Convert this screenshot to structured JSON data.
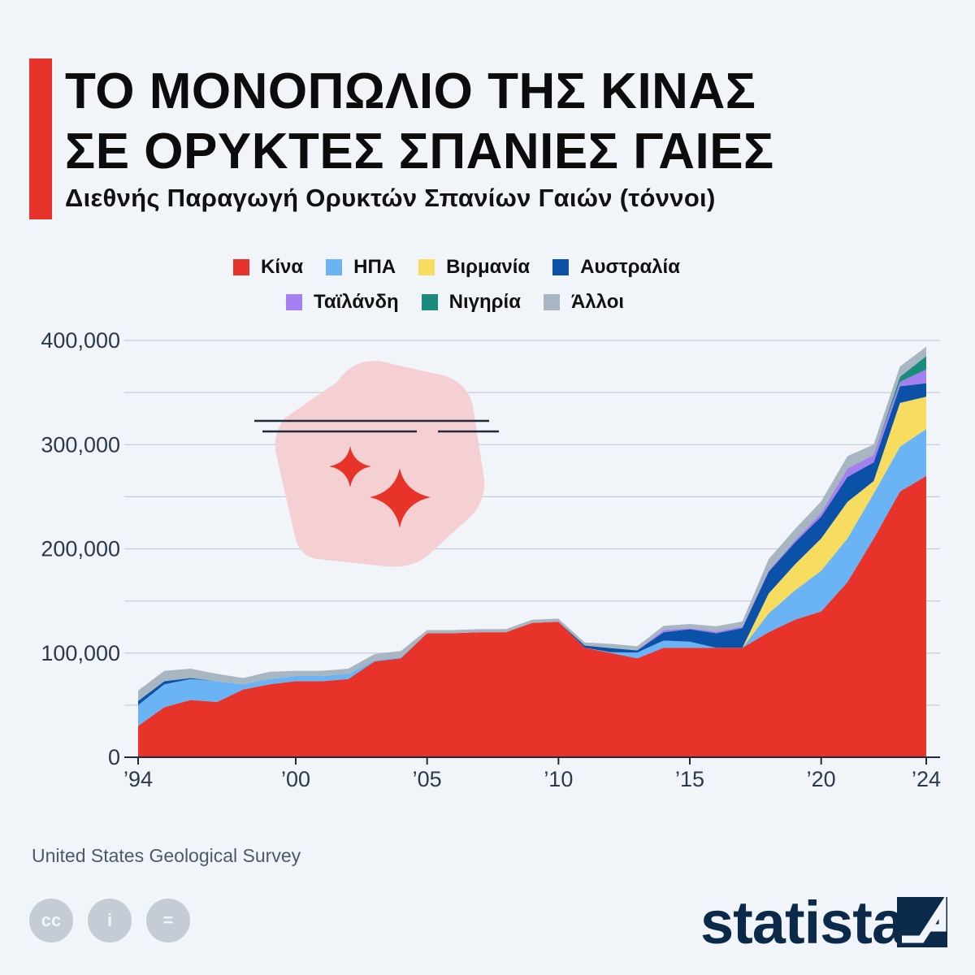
{
  "header": {
    "title_line1": "ΤΟ ΜΟΝΟΠΩΛΙΟ ΤΗΣ ΚΙΝΑΣ",
    "title_line2": "ΣΕ ΟΡΥΚΤΕΣ ΣΠΑΝΙΕΣ ΓΑΙΕΣ",
    "subtitle": "Διεθνής Παραγωγή Ορυκτών Σπανίων Γαιών (τόννοι)",
    "accent_color": "#e8332a"
  },
  "legend": {
    "row1": [
      {
        "label": "Κίνα",
        "color": "#e8332a"
      },
      {
        "label": "ΗΠΑ",
        "color": "#6ab4f6"
      },
      {
        "label": "Βιρμανία",
        "color": "#f7dd5f"
      },
      {
        "label": "Αυστραλία",
        "color": "#0b51a8"
      }
    ],
    "row2": [
      {
        "label": "Ταϊλάνδη",
        "color": "#a47ff0"
      },
      {
        "label": "Νιγηρία",
        "color": "#1b8b7d"
      },
      {
        "label": "Άλλοι",
        "color": "#a8b6c2"
      }
    ]
  },
  "chart_data": {
    "type": "area",
    "stacked": true,
    "x": [
      1994,
      1995,
      1996,
      1997,
      1998,
      1999,
      2000,
      2001,
      2002,
      2003,
      2004,
      2005,
      2006,
      2007,
      2008,
      2009,
      2010,
      2011,
      2012,
      2013,
      2014,
      2015,
      2016,
      2017,
      2018,
      2019,
      2020,
      2021,
      2022,
      2023,
      2024
    ],
    "series": [
      {
        "name": "Κίνα",
        "color": "#e8332a",
        "values": [
          30000,
          48000,
          55000,
          53000,
          65000,
          70000,
          73000,
          73000,
          75000,
          92000,
          95000,
          119000,
          119000,
          120000,
          120000,
          129000,
          130000,
          105000,
          100000,
          95000,
          105000,
          105000,
          105000,
          105000,
          120000,
          132000,
          140000,
          168000,
          210000,
          255000,
          270000
        ]
      },
      {
        "name": "ΗΠΑ",
        "color": "#6ab4f6",
        "values": [
          20000,
          22000,
          20000,
          20000,
          5000,
          5000,
          5000,
          5000,
          5000,
          1000,
          1000,
          0,
          0,
          0,
          0,
          0,
          0,
          0,
          800,
          5500,
          7000,
          5900,
          0,
          0,
          18000,
          28000,
          39000,
          42000,
          43000,
          43000,
          45000
        ]
      },
      {
        "name": "Βιρμανία",
        "color": "#f7dd5f",
        "values": [
          0,
          0,
          0,
          0,
          0,
          0,
          0,
          0,
          0,
          0,
          0,
          0,
          0,
          0,
          0,
          0,
          0,
          0,
          0,
          0,
          0,
          0,
          0,
          0,
          19000,
          25000,
          31000,
          35000,
          12000,
          42000,
          31000
        ]
      },
      {
        "name": "Αυστραλία",
        "color": "#0b51a8",
        "values": [
          4000,
          3000,
          1000,
          0,
          0,
          0,
          0,
          0,
          0,
          0,
          0,
          0,
          0,
          0,
          0,
          0,
          0,
          2200,
          4000,
          2000,
          8000,
          12000,
          14000,
          19000,
          21000,
          21000,
          21000,
          24000,
          18000,
          16000,
          13000
        ]
      },
      {
        "name": "Ταϊλάνδη",
        "color": "#a47ff0",
        "values": [
          0,
          0,
          0,
          0,
          0,
          0,
          0,
          0,
          0,
          0,
          0,
          0,
          0,
          0,
          0,
          0,
          0,
          0,
          0,
          0,
          2100,
          1000,
          1600,
          1300,
          1000,
          1900,
          3600,
          8000,
          7100,
          4300,
          13000
        ]
      },
      {
        "name": "Νιγηρία",
        "color": "#1b8b7d",
        "values": [
          0,
          0,
          0,
          0,
          0,
          0,
          0,
          0,
          0,
          0,
          0,
          0,
          0,
          0,
          0,
          0,
          0,
          0,
          0,
          0,
          0,
          0,
          0,
          0,
          0,
          0,
          0,
          0,
          0,
          4800,
          13000
        ]
      },
      {
        "name": "Άλλοι",
        "color": "#a8b6c2",
        "values": [
          10000,
          10000,
          9000,
          7000,
          6000,
          7000,
          5000,
          5000,
          5000,
          6000,
          6000,
          3000,
          3000,
          3000,
          3000,
          3000,
          3000,
          3000,
          4000,
          4000,
          4000,
          4000,
          5000,
          5000,
          11000,
          11000,
          11000,
          12000,
          10000,
          10000,
          9000
        ]
      }
    ],
    "ylim": [
      0,
      400000
    ],
    "y_ticks": [
      "0",
      "100,000",
      "200,000",
      "300,000",
      "400,000"
    ],
    "y_tick_values": [
      0,
      100000,
      200000,
      300000,
      400000
    ],
    "x_ticks": [
      "’94",
      "’00",
      "’05",
      "’10",
      "’15",
      "’20",
      "’24"
    ],
    "x_tick_values": [
      1994,
      2000,
      2005,
      2010,
      2015,
      2020,
      2024
    ],
    "grid": true,
    "legend_position": "top"
  },
  "footer": {
    "source": "United States Geological Survey",
    "cc_icons": [
      "cc-icon",
      "person-icon",
      "equals-icon"
    ],
    "cc_glyphs": [
      "cc",
      "i",
      "="
    ],
    "brand": "statista",
    "brand_color": "#0b2a4a"
  }
}
